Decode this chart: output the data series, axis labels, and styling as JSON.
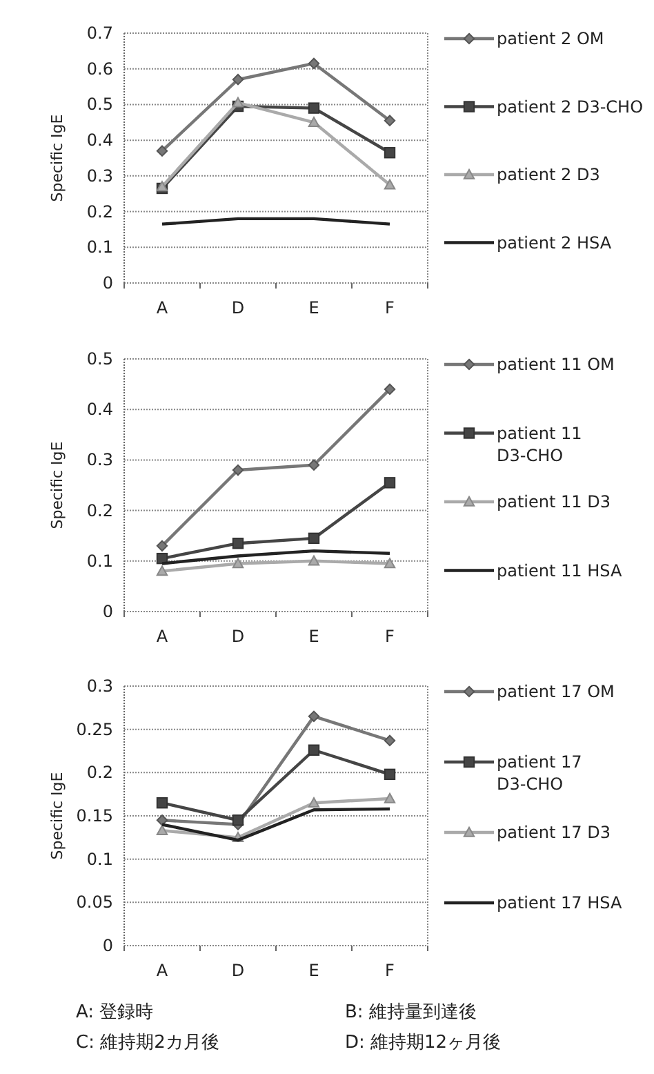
{
  "chart_data": [
    {
      "type": "line",
      "ylabel": "Specific IgE",
      "categories": [
        "A",
        "D",
        "E",
        "F"
      ],
      "ylim": [
        0,
        0.7
      ],
      "yticks": [
        0,
        0.1,
        0.2,
        0.3,
        0.4,
        0.5,
        0.6,
        0.7
      ],
      "grid": "y",
      "legend": "right",
      "series": [
        {
          "name": "patient 2 OM",
          "color": "#777777",
          "marker": "diamond",
          "values": [
            0.37,
            0.57,
            0.615,
            0.455
          ]
        },
        {
          "name": "patient 2 D3-CHO",
          "color": "#454545",
          "marker": "square",
          "values": [
            0.265,
            0.495,
            0.49,
            0.365
          ]
        },
        {
          "name": "patient 2 D3",
          "color": "#aaaaaa",
          "marker": "triangle",
          "values": [
            0.27,
            0.505,
            0.45,
            0.275
          ]
        },
        {
          "name": "patient 2 HSA",
          "color": "#222222",
          "marker": "none",
          "values": [
            0.165,
            0.18,
            0.18,
            0.165
          ]
        }
      ]
    },
    {
      "type": "line",
      "ylabel": "Specific IgE",
      "categories": [
        "A",
        "D",
        "E",
        "F"
      ],
      "ylim": [
        0,
        0.5
      ],
      "yticks": [
        0,
        0.1,
        0.2,
        0.3,
        0.4,
        0.5
      ],
      "grid": "y",
      "legend": "right",
      "series": [
        {
          "name": "patient 11 OM",
          "color": "#777777",
          "marker": "diamond",
          "values": [
            0.13,
            0.28,
            0.29,
            0.44
          ]
        },
        {
          "name": "patient 11 D3-CHO",
          "color": "#454545",
          "marker": "square",
          "values": [
            0.105,
            0.135,
            0.145,
            0.255
          ]
        },
        {
          "name": "patient 11 D3",
          "color": "#aaaaaa",
          "marker": "triangle",
          "values": [
            0.08,
            0.095,
            0.1,
            0.095
          ]
        },
        {
          "name": "patient 11 HSA",
          "color": "#222222",
          "marker": "none",
          "values": [
            0.095,
            0.11,
            0.12,
            0.115
          ]
        }
      ]
    },
    {
      "type": "line",
      "ylabel": "Specific IgE",
      "categories": [
        "A",
        "D",
        "E",
        "F"
      ],
      "ylim": [
        0,
        0.3
      ],
      "yticks": [
        0,
        0.05,
        0.1,
        0.15,
        0.2,
        0.25,
        0.3
      ],
      "grid": "y",
      "legend": "right",
      "series": [
        {
          "name": "patient 17 OM",
          "color": "#777777",
          "marker": "diamond",
          "values": [
            0.145,
            0.14,
            0.265,
            0.237
          ]
        },
        {
          "name": "patient 17 D3-CHO",
          "color": "#454545",
          "marker": "square",
          "values": [
            0.165,
            0.145,
            0.226,
            0.198
          ]
        },
        {
          "name": "patient 17 D3",
          "color": "#aaaaaa",
          "marker": "triangle",
          "values": [
            0.133,
            0.125,
            0.165,
            0.17
          ]
        },
        {
          "name": "patient 17 HSA",
          "color": "#222222",
          "marker": "none",
          "values": [
            0.14,
            0.122,
            0.157,
            0.158
          ]
        }
      ],
      "annotations": [
        "A: 登録時",
        "B: 維持量到達後",
        "C: 維持期2カ月後",
        "D: 維持期12ヶ月後"
      ]
    }
  ]
}
